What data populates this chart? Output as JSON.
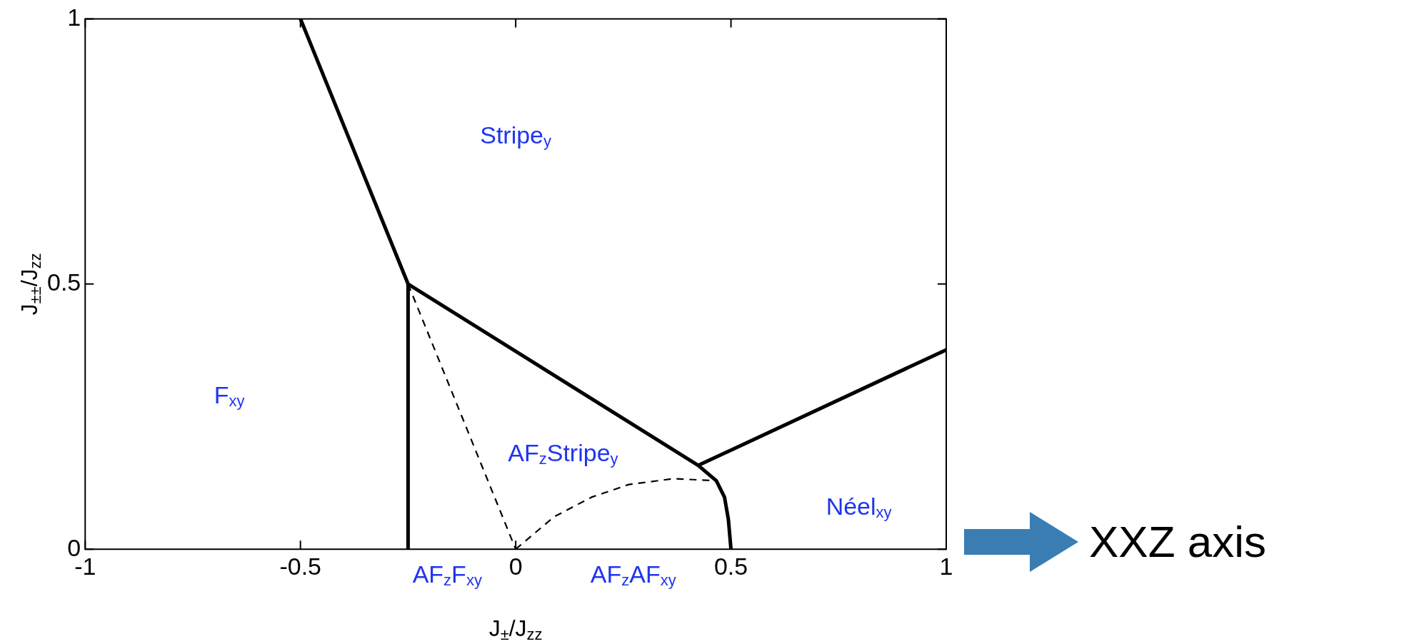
{
  "chart_data": {
    "type": "line",
    "xlabel": "J$_{±}$/J$_{zz}$",
    "ylabel": "J$_{±±}$/J$_{zz}$",
    "xlim": [
      -1,
      1
    ],
    "xticks": [
      -1,
      -0.5,
      0,
      0.5,
      1
    ],
    "ylim": [
      0,
      1
    ],
    "yticks": [
      0,
      0.5,
      1
    ],
    "grid": false,
    "legend": false,
    "marker": "none",
    "series": [
      {
        "color": "#000000",
        "x": [
          -0.5,
          -0.25,
          -0.25
        ],
        "values": [
          1,
          0.5,
          0
        ]
      },
      {
        "color": "#000000",
        "x": [
          -0.25,
          0.424,
          0.466,
          0.485,
          0.494,
          0.5
        ],
        "values": [
          0.5,
          0.158,
          0.129,
          0.098,
          0.056,
          0
        ]
      },
      {
        "color": "#000000",
        "x": [
          0.424,
          1
        ],
        "values": [
          0.158,
          0.376
        ]
      },
      {
        "color": "#000000",
        "line_style": "dashed",
        "x": [
          -0.25,
          0
        ],
        "values": [
          0.5,
          0
        ]
      },
      {
        "color": "#000000",
        "line_style": "dashed",
        "x": [
          0,
          0.089,
          0.176,
          0.263,
          0.367,
          0.466
        ],
        "values": [
          0,
          0.061,
          0.098,
          0.122,
          0.133,
          0.129
        ]
      }
    ],
    "annotations": [
      "Stripe$_{y}$",
      "F$_{xy}$",
      "AF$_{z}$Stripe$_{y}$",
      "Néel$_{xy}$",
      "AF$_{z}$F$_{xy}$",
      "AF$_{z}$AF$_{xy}$",
      "XXZ axis"
    ]
  }
}
